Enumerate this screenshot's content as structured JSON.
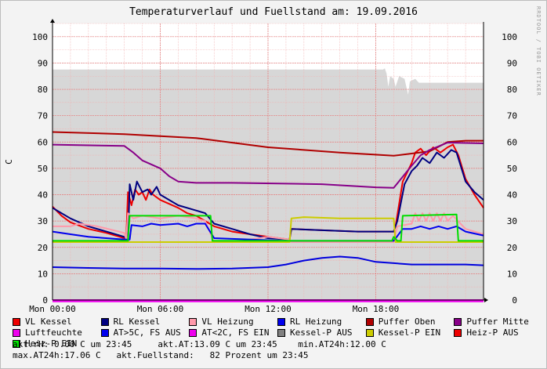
{
  "title": "Temperaturverlauf und Fuellstand am: 19.09.2016",
  "watermark": "RRDTOOL / TOBI OETIKER",
  "chart_data": {
    "type": "line",
    "title": "Temperaturverlauf und Fuellstand am: 19.09.2016",
    "ylabel": "C",
    "xlabel": "",
    "ylim": [
      0,
      105
    ],
    "yticks": [
      0,
      10,
      20,
      30,
      40,
      50,
      60,
      70,
      80,
      90,
      100
    ],
    "xlim": [
      0,
      24
    ],
    "xticks": [
      {
        "x": 0,
        "label": "Mon 00:00"
      },
      {
        "x": 6,
        "label": "Mon 06:00"
      },
      {
        "x": 12,
        "label": "Mon 12:00"
      },
      {
        "x": 18,
        "label": "Mon 18:00"
      }
    ],
    "grid": true,
    "fill_series": {
      "name": "Fuellstand",
      "color": "#d7d7d7",
      "points": [
        [
          0,
          87.5
        ],
        [
          18.4,
          87.5
        ],
        [
          18.5,
          88
        ],
        [
          18.6,
          86
        ],
        [
          18.7,
          81
        ],
        [
          18.8,
          85
        ],
        [
          19.0,
          84
        ],
        [
          19.1,
          81
        ],
        [
          19.3,
          85
        ],
        [
          19.6,
          84
        ],
        [
          19.8,
          78
        ],
        [
          19.9,
          83
        ],
        [
          20.2,
          84
        ],
        [
          20.4,
          82.5
        ],
        [
          24,
          82.5
        ]
      ]
    },
    "series": [
      {
        "name": "VL Kessel",
        "color": "#ee0000",
        "points": [
          [
            0,
            35.5
          ],
          [
            0.5,
            32
          ],
          [
            1,
            29.5
          ],
          [
            2,
            27
          ],
          [
            3,
            25.5
          ],
          [
            4,
            23.5
          ],
          [
            4.1,
            23
          ],
          [
            4.2,
            41
          ],
          [
            4.4,
            36
          ],
          [
            4.6,
            42
          ],
          [
            4.8,
            40
          ],
          [
            5,
            41
          ],
          [
            5.2,
            38
          ],
          [
            5.4,
            42
          ],
          [
            5.6,
            40
          ],
          [
            6,
            38
          ],
          [
            7,
            35
          ],
          [
            7.5,
            33
          ],
          [
            8,
            32
          ],
          [
            8.5,
            30
          ],
          [
            9,
            28
          ],
          [
            10,
            26
          ],
          [
            11,
            25
          ],
          [
            12,
            24
          ],
          [
            13.2,
            23
          ],
          [
            13.3,
            27
          ],
          [
            15,
            26.5
          ],
          [
            17,
            26
          ],
          [
            19,
            26
          ],
          [
            19.1,
            28
          ],
          [
            19.5,
            45
          ],
          [
            20,
            52
          ],
          [
            20.2,
            56
          ],
          [
            20.5,
            57.5
          ],
          [
            20.8,
            55
          ],
          [
            21.2,
            58
          ],
          [
            21.6,
            56
          ],
          [
            22,
            58
          ],
          [
            22.3,
            59
          ],
          [
            22.6,
            55
          ],
          [
            23,
            46
          ],
          [
            23.5,
            40
          ],
          [
            24,
            35
          ]
        ]
      },
      {
        "name": "RL Kessel",
        "color": "#000080",
        "points": [
          [
            0,
            35
          ],
          [
            0.5,
            33
          ],
          [
            1,
            31
          ],
          [
            2,
            28
          ],
          [
            3,
            26
          ],
          [
            4,
            24
          ],
          [
            4.2,
            22
          ],
          [
            4.3,
            44
          ],
          [
            4.5,
            38
          ],
          [
            4.7,
            45
          ],
          [
            5,
            41
          ],
          [
            5.3,
            42
          ],
          [
            5.5,
            40
          ],
          [
            5.8,
            43
          ],
          [
            6,
            40
          ],
          [
            7,
            36
          ],
          [
            8,
            34
          ],
          [
            8.5,
            33
          ],
          [
            9,
            29
          ],
          [
            10,
            27
          ],
          [
            11,
            25
          ],
          [
            12,
            23.5
          ],
          [
            13.2,
            23
          ],
          [
            13.3,
            27
          ],
          [
            15,
            26.5
          ],
          [
            17,
            26
          ],
          [
            19,
            26
          ],
          [
            19.2,
            30
          ],
          [
            19.6,
            44
          ],
          [
            20,
            49
          ],
          [
            20.3,
            51
          ],
          [
            20.6,
            54
          ],
          [
            21,
            52
          ],
          [
            21.4,
            56
          ],
          [
            21.8,
            54
          ],
          [
            22.2,
            57
          ],
          [
            22.5,
            56
          ],
          [
            23,
            45
          ],
          [
            23.5,
            41
          ],
          [
            24,
            38
          ]
        ]
      },
      {
        "name": "VL Heizung",
        "color": "#ff99aa",
        "points": [
          [
            0,
            28
          ],
          [
            1,
            28
          ],
          [
            1.5,
            29
          ],
          [
            2.5,
            28
          ],
          [
            4,
            25.5
          ],
          [
            4.1,
            23
          ],
          [
            4.2,
            33
          ],
          [
            4.5,
            31
          ],
          [
            5,
            32
          ],
          [
            6,
            31
          ],
          [
            7,
            32
          ],
          [
            8,
            31
          ],
          [
            8.5,
            30
          ],
          [
            9,
            22
          ],
          [
            10,
            22
          ],
          [
            11,
            23
          ],
          [
            12,
            24
          ],
          [
            13.2,
            23
          ],
          [
            13.3,
            22
          ],
          [
            15,
            22
          ],
          [
            18,
            22
          ],
          [
            19,
            22
          ],
          [
            19.2,
            28
          ],
          [
            20,
            29
          ],
          [
            20.2,
            33
          ],
          [
            20.4,
            30
          ],
          [
            20.6,
            33
          ],
          [
            20.8,
            30
          ],
          [
            21,
            33
          ],
          [
            21.2,
            30
          ],
          [
            21.4,
            33
          ],
          [
            21.6,
            30
          ],
          [
            21.8,
            33
          ],
          [
            22,
            30
          ],
          [
            22.3,
            32
          ],
          [
            23,
            27
          ],
          [
            24,
            25
          ]
        ]
      },
      {
        "name": "RL Heizung",
        "color": "#0000ee",
        "points": [
          [
            0,
            26
          ],
          [
            1,
            25
          ],
          [
            2,
            24
          ],
          [
            4,
            23
          ],
          [
            4.3,
            23
          ],
          [
            4.4,
            28.5
          ],
          [
            5,
            28
          ],
          [
            5.5,
            29
          ],
          [
            6,
            28.5
          ],
          [
            7,
            29
          ],
          [
            7.5,
            28
          ],
          [
            8,
            29
          ],
          [
            8.5,
            29
          ],
          [
            9,
            23.5
          ],
          [
            11,
            23
          ],
          [
            13,
            22.5
          ],
          [
            15,
            22.5
          ],
          [
            17,
            22.5
          ],
          [
            19,
            22.5
          ],
          [
            19.5,
            27
          ],
          [
            20,
            27
          ],
          [
            20.5,
            28
          ],
          [
            21,
            27
          ],
          [
            21.5,
            28
          ],
          [
            22,
            27
          ],
          [
            22.5,
            28
          ],
          [
            23,
            26
          ],
          [
            24,
            24.5
          ]
        ]
      },
      {
        "name": "Puffer Oben",
        "color": "#b00000",
        "points": [
          [
            0,
            63.8
          ],
          [
            4,
            63
          ],
          [
            8,
            61.5
          ],
          [
            12,
            58
          ],
          [
            16,
            56
          ],
          [
            19,
            54.8
          ],
          [
            21,
            56.5
          ],
          [
            22,
            60
          ],
          [
            23,
            60.5
          ],
          [
            24,
            60.5
          ]
        ]
      },
      {
        "name": "Puffer Mitte",
        "color": "#880088",
        "points": [
          [
            0,
            59
          ],
          [
            4,
            58.5
          ],
          [
            4.5,
            56
          ],
          [
            5,
            53
          ],
          [
            6,
            50
          ],
          [
            6.5,
            47
          ],
          [
            7,
            45
          ],
          [
            8,
            44.5
          ],
          [
            10,
            44.5
          ],
          [
            15,
            44
          ],
          [
            18,
            42.8
          ],
          [
            19,
            42.6
          ],
          [
            20,
            51
          ],
          [
            20.5,
            55
          ],
          [
            21,
            57
          ],
          [
            22,
            59.8
          ],
          [
            24,
            59.5
          ]
        ]
      },
      {
        "name": "Luftfeuchte",
        "color": "#ee00ee",
        "points": [
          [
            0,
            0
          ],
          [
            24,
            0
          ]
        ]
      },
      {
        "name": "AT>5C, FS AUS",
        "color": "#0000dd",
        "points": [
          [
            0,
            12.5
          ],
          [
            2,
            12.2
          ],
          [
            4,
            12
          ],
          [
            6,
            12
          ],
          [
            8,
            11.8
          ],
          [
            10,
            12
          ],
          [
            12,
            12.5
          ],
          [
            13,
            13.5
          ],
          [
            14,
            15
          ],
          [
            15,
            16
          ],
          [
            16,
            16.5
          ],
          [
            17,
            16
          ],
          [
            18,
            14.5
          ],
          [
            19,
            14
          ],
          [
            20,
            13.5
          ],
          [
            21,
            13.5
          ],
          [
            22,
            13.5
          ],
          [
            23,
            13.5
          ],
          [
            24,
            13.2
          ]
        ]
      },
      {
        "name": "AT<2C, FS EIN",
        "color": "#ee00ee",
        "points": [
          [
            0,
            -0.5
          ],
          [
            24,
            -0.5
          ]
        ]
      },
      {
        "name": "Kessel-P AUS",
        "color": "#808080",
        "points": []
      },
      {
        "name": "Kessel-P EIN",
        "color": "#cccc00",
        "points": [
          [
            0,
            22
          ],
          [
            13.2,
            22
          ],
          [
            13.3,
            31
          ],
          [
            14,
            31.5
          ],
          [
            16,
            31
          ],
          [
            18,
            31
          ],
          [
            19,
            31
          ],
          [
            19.1,
            22
          ],
          [
            24,
            22
          ]
        ]
      },
      {
        "name": "Heiz-P AUS",
        "color": "#ee0000",
        "points": []
      },
      {
        "name": "Heiz-P EIN",
        "color": "#00dd00",
        "points": [
          [
            0,
            22.5
          ],
          [
            4.2,
            22.5
          ],
          [
            4.3,
            32
          ],
          [
            8.8,
            32
          ],
          [
            8.9,
            22.5
          ],
          [
            18.9,
            22.5
          ],
          [
            19,
            24
          ],
          [
            19.2,
            22.5
          ],
          [
            19.4,
            22.5
          ],
          [
            19.5,
            32
          ],
          [
            22.5,
            32.5
          ],
          [
            22.6,
            22.5
          ],
          [
            24,
            22.5
          ]
        ]
      }
    ]
  },
  "legend": [
    {
      "label": "VL Kessel",
      "color": "#ee0000"
    },
    {
      "label": "RL Kessel",
      "color": "#000080"
    },
    {
      "label": "VL Heizung",
      "color": "#ff99aa"
    },
    {
      "label": "RL Heizung",
      "color": "#0000ee"
    },
    {
      "label": "Puffer Oben",
      "color": "#b00000"
    },
    {
      "label": "Puffer Mitte",
      "color": "#880088"
    },
    {
      "label": "Luftfeuchte",
      "color": "#ee00ee"
    },
    {
      "label": "AT>5C, FS AUS",
      "color": "#0000ee"
    },
    {
      "label": "AT<2C, FS EIN",
      "color": "#ee00ee"
    },
    {
      "label": "Kessel-P AUS",
      "color": "#808080"
    },
    {
      "label": "Kessel-P EIN",
      "color": "#cccc00"
    },
    {
      "label": "Heiz-P AUS",
      "color": "#ee0000"
    },
    {
      "label": "Heiz-P EIN",
      "color": "#00ee00"
    }
  ],
  "status": {
    "line1": "akt.rH: 0.00 C um 23:45     akt.AT:13.09 C um 23:45    min.AT24h:12.00 C",
    "line2": "max.AT24h:17.06 C   akt.Fuellstand:   82 Prozent um 23:45"
  }
}
